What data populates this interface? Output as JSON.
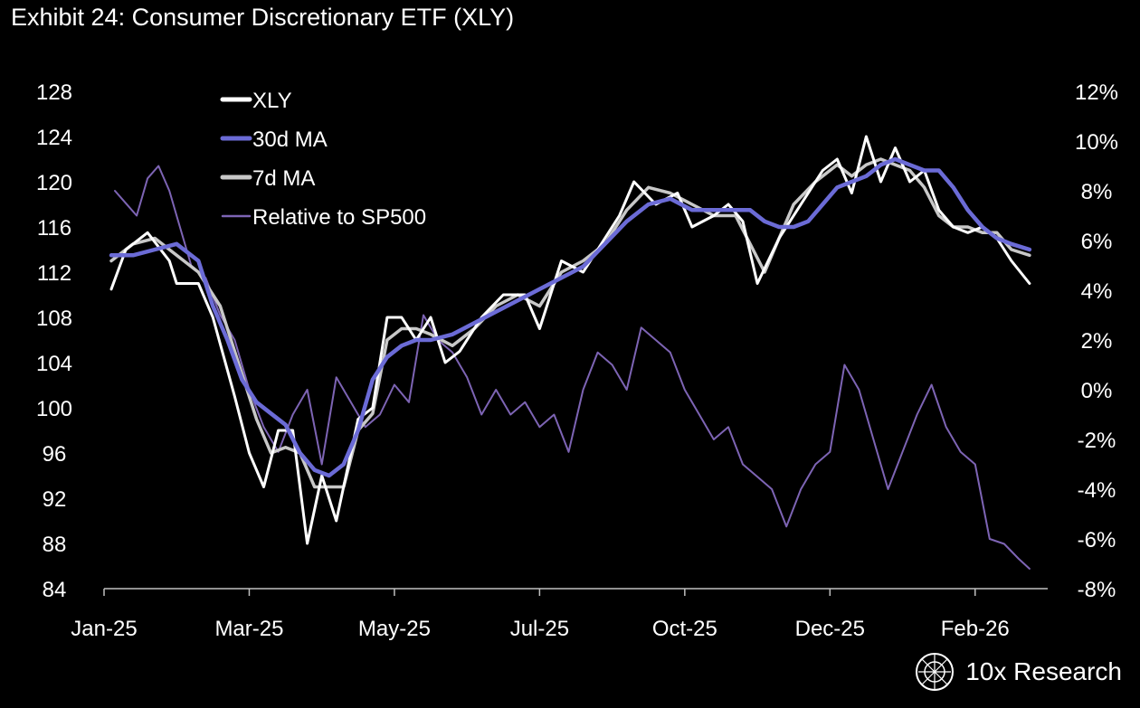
{
  "title": "Exhibit 24: Consumer Discretionary ETF (XLY)",
  "brand": {
    "name": "10x Research",
    "icon": "globe-logo-icon"
  },
  "colors": {
    "background": "#000000",
    "xly": "#ffffff",
    "ma30": "#6b6bd6",
    "ma7": "#c8c8c8",
    "relative": "#7d64b4",
    "axis": "#bfbfbf"
  },
  "chart_data": {
    "type": "line",
    "title": "Exhibit 24: Consumer Discretionary ETF (XLY)",
    "x_tick_labels": [
      "Jan-25",
      "Mar-25",
      "May-25",
      "Jul-25",
      "Oct-25",
      "Dec-25",
      "Feb-26"
    ],
    "y_left": {
      "range": [
        84,
        128
      ],
      "ticks": [
        128,
        124,
        120,
        116,
        112,
        108,
        104,
        100,
        96,
        92,
        88,
        84
      ]
    },
    "y_right": {
      "range": [
        -8,
        12
      ],
      "ticks": [
        "12%",
        "10%",
        "8%",
        "6%",
        "4%",
        "2%",
        "0%",
        "-2%",
        "-4%",
        "-6%",
        "-8%"
      ]
    },
    "x_range": [
      0,
      13
    ],
    "legend": [
      "XLY",
      "30d MA",
      "7d MA",
      "Relative to SP500"
    ],
    "series": [
      {
        "name": "XLY",
        "axis": "left",
        "x": [
          0.1,
          0.3,
          0.6,
          0.9,
          1.0,
          1.3,
          1.5,
          1.8,
          2.0,
          2.2,
          2.4,
          2.6,
          2.8,
          3.0,
          3.2,
          3.4,
          3.5,
          3.7,
          3.9,
          4.1,
          4.3,
          4.5,
          4.7,
          4.9,
          5.2,
          5.5,
          5.8,
          6.0,
          6.3,
          6.6,
          6.9,
          7.1,
          7.3,
          7.6,
          7.9,
          8.1,
          8.4,
          8.6,
          8.8,
          9.0,
          9.3,
          9.6,
          9.9,
          10.1,
          10.3,
          10.5,
          10.7,
          10.9,
          11.1,
          11.3,
          11.5,
          11.7,
          11.9,
          12.1,
          12.3,
          12.5,
          12.75
        ],
        "values": [
          110.5,
          114,
          115.5,
          113,
          111,
          111,
          108,
          101,
          96,
          93,
          98,
          98,
          88,
          94,
          90,
          96,
          99,
          100,
          108,
          108,
          106,
          108,
          104,
          105,
          108,
          110,
          110,
          107,
          113,
          112,
          115,
          117,
          120,
          118,
          119,
          116,
          117,
          118,
          116.5,
          111,
          115,
          118,
          121,
          122,
          119,
          124,
          120,
          123,
          120,
          121,
          117.5,
          116,
          115.5,
          116,
          115,
          113,
          111
        ]
      },
      {
        "name": "7d MA",
        "axis": "left",
        "x": [
          0.1,
          0.4,
          0.7,
          1.0,
          1.3,
          1.6,
          1.9,
          2.1,
          2.3,
          2.5,
          2.7,
          2.9,
          3.1,
          3.3,
          3.5,
          3.7,
          3.9,
          4.1,
          4.3,
          4.5,
          4.8,
          5.1,
          5.4,
          5.7,
          6.0,
          6.3,
          6.6,
          6.9,
          7.2,
          7.5,
          7.8,
          8.1,
          8.4,
          8.7,
          8.9,
          9.1,
          9.3,
          9.5,
          9.8,
          10.1,
          10.3,
          10.5,
          10.7,
          10.9,
          11.1,
          11.3,
          11.5,
          11.7,
          11.9,
          12.1,
          12.3,
          12.5,
          12.75
        ],
        "values": [
          113,
          114.5,
          115,
          113.5,
          112,
          109,
          103,
          99,
          96,
          96.5,
          96,
          93,
          93,
          93,
          98,
          99.5,
          106,
          107,
          107,
          106.5,
          105.5,
          107,
          109,
          110,
          109,
          112,
          113,
          114.5,
          117.5,
          119.5,
          119,
          118,
          117,
          117,
          114.5,
          112,
          115,
          118,
          120,
          121.5,
          120.5,
          121.5,
          122,
          121.5,
          121,
          119.5,
          117,
          116,
          116,
          115.5,
          115.5,
          114,
          113.5
        ]
      },
      {
        "name": "30d MA",
        "axis": "left",
        "x": [
          0.1,
          0.4,
          0.7,
          1.0,
          1.3,
          1.5,
          1.7,
          1.9,
          2.1,
          2.3,
          2.5,
          2.7,
          2.9,
          3.1,
          3.3,
          3.5,
          3.7,
          3.9,
          4.1,
          4.3,
          4.5,
          4.8,
          5.1,
          5.4,
          5.7,
          6.0,
          6.3,
          6.6,
          6.9,
          7.2,
          7.5,
          7.8,
          8.1,
          8.4,
          8.7,
          8.9,
          9.1,
          9.3,
          9.5,
          9.7,
          9.9,
          10.1,
          10.3,
          10.5,
          10.7,
          10.9,
          11.1,
          11.3,
          11.5,
          11.7,
          11.9,
          12.1,
          12.3,
          12.5,
          12.75
        ],
        "values": [
          113.5,
          113.5,
          114,
          114.5,
          113,
          109,
          106,
          102.5,
          100.5,
          99.5,
          98.5,
          96,
          94.5,
          94,
          95,
          98,
          102.5,
          104.5,
          105.5,
          106,
          106,
          106.5,
          107.5,
          108.5,
          109.5,
          110.5,
          111.5,
          112.5,
          114.5,
          116.5,
          118,
          118.5,
          117.5,
          117.5,
          117.5,
          117.5,
          116.5,
          116,
          116,
          116.5,
          118,
          119.5,
          120,
          120.5,
          121.5,
          122,
          121.5,
          121,
          121,
          119.5,
          117.5,
          116,
          115,
          114.5,
          114
        ]
      },
      {
        "name": "Relative to SP500",
        "axis": "right",
        "x": [
          0.15,
          0.3,
          0.45,
          0.6,
          0.75,
          0.9,
          1.0,
          1.2,
          1.4,
          1.6,
          1.8,
          2.0,
          2.2,
          2.4,
          2.6,
          2.8,
          3.0,
          3.2,
          3.4,
          3.6,
          3.8,
          4.0,
          4.2,
          4.4,
          4.6,
          4.8,
          5.0,
          5.2,
          5.4,
          5.6,
          5.8,
          6.0,
          6.2,
          6.4,
          6.6,
          6.8,
          7.0,
          7.2,
          7.4,
          7.6,
          7.8,
          8.0,
          8.2,
          8.4,
          8.6,
          8.8,
          9.0,
          9.2,
          9.4,
          9.6,
          9.8,
          10.0,
          10.2,
          10.4,
          10.6,
          10.8,
          11.0,
          11.2,
          11.4,
          11.6,
          11.8,
          12.0,
          12.2,
          12.4,
          12.6,
          12.75
        ],
        "values": [
          8,
          7.5,
          7,
          8.5,
          9,
          8,
          7,
          5,
          4.5,
          3,
          2,
          0,
          -1.5,
          -2.5,
          -1,
          0,
          -3,
          0.5,
          -0.5,
          -1.5,
          -1,
          0.2,
          -0.5,
          3,
          2,
          1.5,
          0.5,
          -1,
          0,
          -1,
          -0.5,
          -1.5,
          -1,
          -2.5,
          0,
          1.5,
          1,
          0,
          2.5,
          2,
          1.5,
          0,
          -1,
          -2,
          -1.5,
          -3,
          -3.5,
          -4,
          -5.5,
          -4,
          -3,
          -2.5,
          1,
          0,
          -2,
          -4,
          -2.5,
          -1,
          0.2,
          -1.5,
          -2.5,
          -3,
          -6,
          -6.2,
          -6.8,
          -7.2
        ]
      }
    ]
  }
}
